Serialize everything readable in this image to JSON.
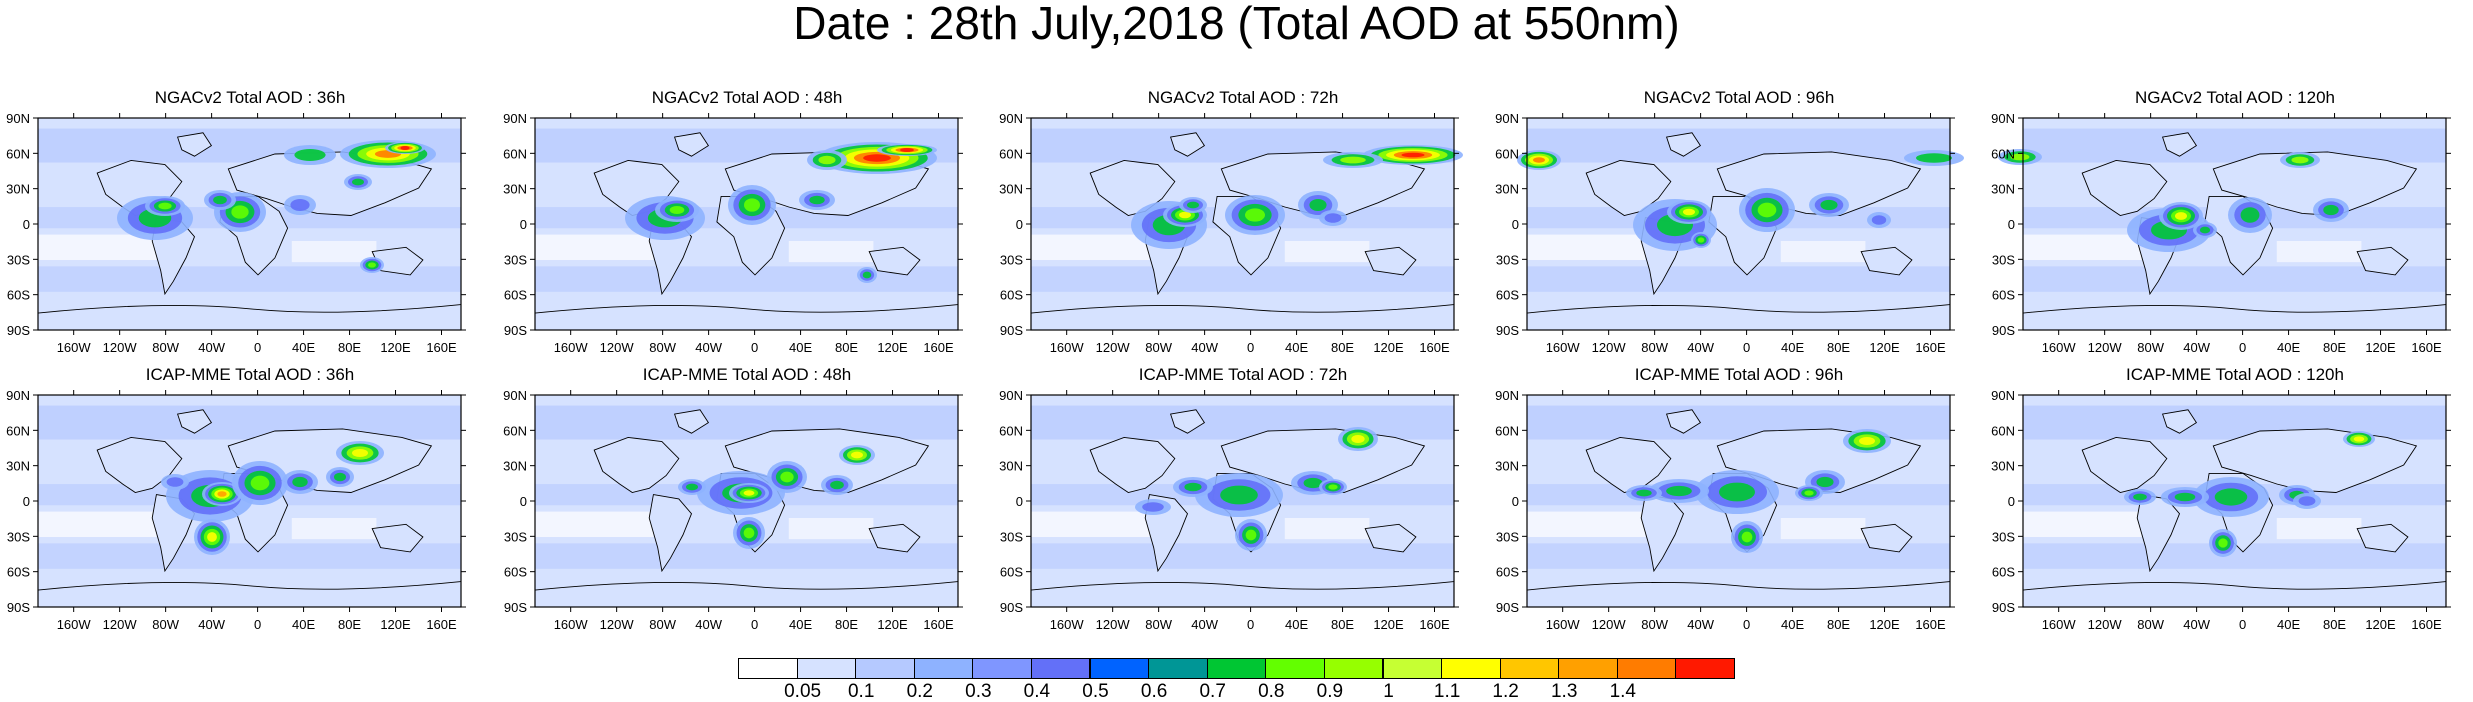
{
  "title": "Date : 28th July,2018 (Total AOD at 550nm)",
  "panels": [
    {
      "title": "NGACv2 Total AOD : 36h",
      "hotspots": [
        [
          "a",
          155,
          198,
          38,
          22,
          5
        ],
        [
          "a",
          165,
          186,
          20,
          10,
          8
        ],
        [
          "a",
          240,
          192,
          26,
          20,
          7
        ],
        [
          "a",
          220,
          180,
          16,
          10,
          5
        ],
        [
          "b",
          388,
          134,
          48,
          14,
          10
        ],
        [
          "b",
          405,
          128,
          20,
          6,
          12
        ],
        [
          "a",
          300,
          185,
          16,
          10,
          4
        ],
        [
          "a",
          358,
          162,
          14,
          8,
          5
        ],
        [
          "a",
          372,
          245,
          12,
          8,
          7
        ],
        [
          "b",
          310,
          135,
          26,
          10,
          4
        ]
      ]
    },
    {
      "title": "NGACv2 Total AOD : 48h",
      "hotspots": [
        [
          "a",
          168,
          198,
          40,
          22,
          5
        ],
        [
          "a",
          180,
          190,
          22,
          12,
          8
        ],
        [
          "a",
          255,
          185,
          24,
          20,
          7
        ],
        [
          "b",
          380,
          138,
          60,
          16,
          11
        ],
        [
          "b",
          410,
          130,
          30,
          6,
          13
        ],
        [
          "a",
          320,
          180,
          18,
          10,
          5
        ],
        [
          "a",
          370,
          255,
          10,
          8,
          6
        ],
        [
          "b",
          330,
          140,
          20,
          10,
          5
        ]
      ]
    },
    {
      "title": "NGACv2 Total AOD : 72h",
      "hotspots": [
        [
          "a",
          176,
          205,
          38,
          24,
          6
        ],
        [
          "a",
          192,
          195,
          22,
          12,
          10
        ],
        [
          "a",
          262,
          195,
          30,
          20,
          7
        ],
        [
          "b",
          420,
          135,
          50,
          10,
          12
        ],
        [
          "a",
          325,
          185,
          20,
          14,
          5
        ],
        [
          "a",
          340,
          198,
          14,
          8,
          4
        ],
        [
          "b",
          360,
          140,
          30,
          8,
          5
        ],
        [
          "a",
          200,
          185,
          14,
          8,
          6
        ]
      ]
    },
    {
      "title": "NGACv2 Total AOD : 96h",
      "hotspots": [
        [
          "a",
          186,
          205,
          42,
          26,
          6
        ],
        [
          "a",
          200,
          192,
          22,
          12,
          10
        ],
        [
          "a",
          278,
          190,
          28,
          22,
          7
        ],
        [
          "b",
          50,
          140,
          22,
          10,
          9
        ],
        [
          "a",
          340,
          185,
          20,
          12,
          5
        ],
        [
          "b",
          445,
          138,
          30,
          8,
          4
        ],
        [
          "a",
          212,
          220,
          10,
          8,
          8
        ],
        [
          "a",
          390,
          200,
          12,
          8,
          4
        ]
      ]
    },
    {
      "title": "NGACv2 Total AOD : 120h",
      "hotspots": [
        [
          "a",
          184,
          210,
          42,
          22,
          6
        ],
        [
          "a",
          196,
          196,
          22,
          14,
          9
        ],
        [
          "a",
          265,
          195,
          22,
          18,
          6
        ],
        [
          "b",
          35,
          137,
          22,
          8,
          6
        ],
        [
          "a",
          346,
          190,
          18,
          12,
          5
        ],
        [
          "a",
          220,
          210,
          12,
          8,
          5
        ],
        [
          "b",
          315,
          140,
          20,
          8,
          5
        ]
      ]
    },
    {
      "title": "ICAP-MME Total AOD : 36h",
      "hotspots": [
        [
          "a",
          210,
          199,
          44,
          26,
          6
        ],
        [
          "a",
          222,
          197,
          20,
          12,
          12
        ],
        [
          "a",
          260,
          186,
          28,
          22,
          8
        ],
        [
          "a",
          212,
          240,
          18,
          18,
          9
        ],
        [
          "a",
          300,
          185,
          18,
          12,
          6
        ],
        [
          "a",
          340,
          180,
          14,
          10,
          5
        ],
        [
          "b",
          360,
          156,
          24,
          12,
          8
        ],
        [
          "a",
          175,
          185,
          14,
          8,
          4
        ]
      ]
    },
    {
      "title": "ICAP-MME Total AOD : 48h",
      "hotspots": [
        [
          "a",
          244,
          196,
          44,
          22,
          6
        ],
        [
          "a",
          252,
          196,
          20,
          10,
          9
        ],
        [
          "a",
          290,
          180,
          20,
          16,
          7
        ],
        [
          "a",
          252,
          236,
          16,
          16,
          8
        ],
        [
          "a",
          340,
          188,
          16,
          10,
          5
        ],
        [
          "b",
          360,
          158,
          18,
          10,
          7
        ],
        [
          "a",
          195,
          190,
          14,
          8,
          5
        ]
      ]
    },
    {
      "title": "ICAP-MME Total AOD : 72h",
      "hotspots": [
        [
          "a",
          246,
          198,
          44,
          22,
          6
        ],
        [
          "a",
          200,
          190,
          20,
          10,
          5
        ],
        [
          "a",
          258,
          238,
          16,
          16,
          8
        ],
        [
          "a",
          320,
          186,
          22,
          12,
          5
        ],
        [
          "a",
          340,
          190,
          14,
          8,
          7
        ],
        [
          "b",
          365,
          142,
          20,
          12,
          7
        ],
        [
          "a",
          160,
          210,
          18,
          8,
          4
        ]
      ]
    },
    {
      "title": "ICAP-MME Total AOD : 96h",
      "hotspots": [
        [
          "a",
          248,
          195,
          42,
          22,
          6
        ],
        [
          "a",
          190,
          194,
          30,
          12,
          5
        ],
        [
          "a",
          258,
          240,
          16,
          16,
          8
        ],
        [
          "a",
          336,
          185,
          20,
          12,
          5
        ],
        [
          "a",
          320,
          196,
          14,
          8,
          8
        ],
        [
          "b",
          378,
          144,
          24,
          12,
          8
        ],
        [
          "a",
          155,
          196,
          18,
          8,
          5
        ]
      ]
    },
    {
      "title": "ICAP-MME Total AOD : 120h",
      "hotspots": [
        [
          "a",
          246,
          200,
          38,
          20,
          6
        ],
        [
          "a",
          200,
          200,
          24,
          10,
          5
        ],
        [
          "a",
          238,
          246,
          14,
          14,
          8
        ],
        [
          "a",
          312,
          198,
          18,
          10,
          6
        ],
        [
          "a",
          322,
          204,
          14,
          8,
          4
        ],
        [
          "b",
          374,
          142,
          16,
          8,
          8
        ],
        [
          "a",
          155,
          200,
          16,
          8,
          5
        ]
      ]
    }
  ],
  "axis": {
    "lat_labels": [
      "90N",
      "60N",
      "30N",
      "0",
      "30S",
      "60S",
      "90S"
    ],
    "lon_labels": [
      "160W",
      "120W",
      "80W",
      "40W",
      "0",
      "40E",
      "80E",
      "120E",
      "160E"
    ]
  },
  "colorbar": {
    "colors": [
      "#ffffff",
      "#d6e2ff",
      "#b5c9ff",
      "#8eb2ff",
      "#7f96ff",
      "#6370f8",
      "#0063ff",
      "#009696",
      "#00c633",
      "#63ff00",
      "#96ff00",
      "#c6ff33",
      "#ffff00",
      "#ffc600",
      "#ffa000",
      "#ff7c00",
      "#ff1900"
    ],
    "labels": [
      "0.05",
      "0.1",
      "0.2",
      "0.3",
      "0.4",
      "0.5",
      "0.6",
      "0.7",
      "0.8",
      "0.9",
      "1",
      "1.1",
      "1.2",
      "1.3",
      "1.4"
    ]
  }
}
